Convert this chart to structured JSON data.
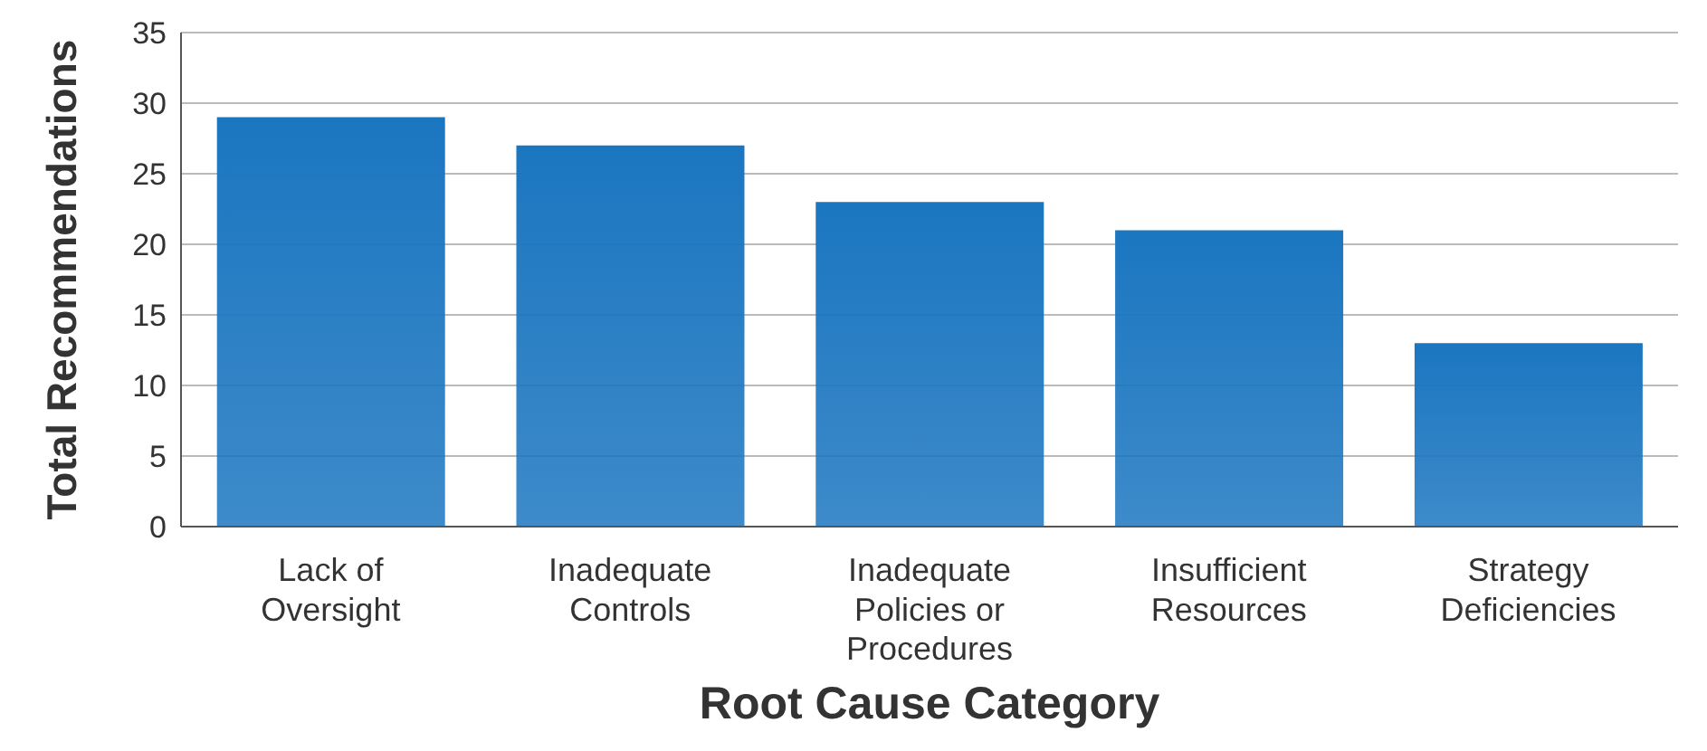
{
  "chart_data": {
    "type": "bar",
    "xlabel": "Root Cause Category",
    "ylabel": "Total Recommendations",
    "categories": [
      "Lack of Oversight",
      "Inadequate Controls",
      "Inadequate Policies or Procedures",
      "Insufficient Resources",
      "Strategy Deficiencies"
    ],
    "values": [
      29,
      27,
      23,
      21,
      13
    ],
    "color": "#1b76c0",
    "ylim": [
      0,
      35
    ],
    "yticks": [
      0,
      5,
      10,
      15,
      20,
      25,
      30,
      35
    ],
    "grid": "y",
    "legend": false
  }
}
